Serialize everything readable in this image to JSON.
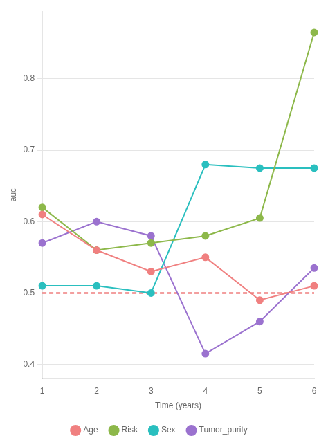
{
  "chart_data": {
    "type": "line",
    "x": [
      1,
      2,
      3,
      4,
      5,
      6
    ],
    "series": [
      {
        "name": "Age",
        "color": "#f08080",
        "values": [
          0.61,
          0.56,
          0.53,
          0.55,
          0.49,
          0.51
        ]
      },
      {
        "name": "Risk",
        "color": "#8db84a",
        "values": [
          0.62,
          0.56,
          0.57,
          0.58,
          0.605,
          0.865
        ]
      },
      {
        "name": "Sex",
        "color": "#2abfbf",
        "values": [
          0.51,
          0.51,
          0.5,
          0.68,
          0.675,
          0.675
        ]
      },
      {
        "name": "Tumor_purity",
        "color": "#9b72cf",
        "values": [
          0.57,
          0.6,
          0.58,
          0.415,
          0.46,
          0.535
        ]
      }
    ],
    "xlabel": "Time (years)",
    "ylabel": "auc",
    "xlim": [
      1,
      6
    ],
    "xticks": [
      1,
      2,
      3,
      4,
      5,
      6
    ],
    "ylim": [
      0.38,
      0.895
    ],
    "yticks": [
      0.4,
      0.5,
      0.6,
      0.7,
      0.8
    ],
    "reference_line": {
      "value": 0.5,
      "color": "#e84040",
      "line_style": "dashed"
    },
    "marker": "circle",
    "grid": "y",
    "legend": "bottom"
  }
}
